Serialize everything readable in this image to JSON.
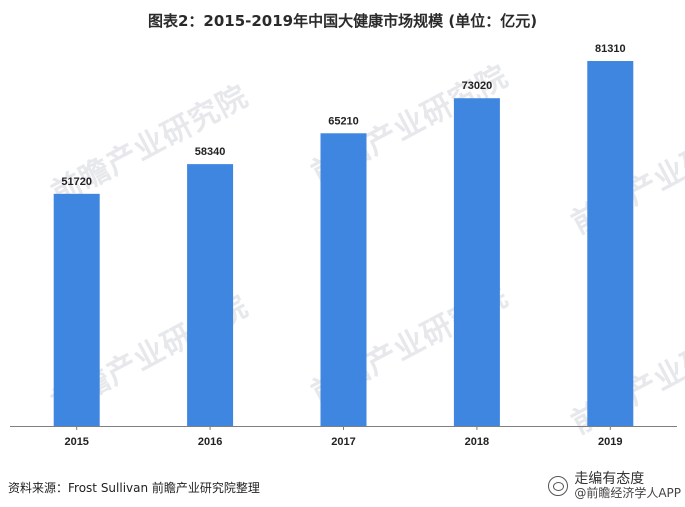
{
  "title": "图表2：2015-2019年中国大健康市场规模 (单位：亿元)",
  "watermark_text": "前瞻产业研究院",
  "footer": {
    "source": "资料来源：Frost Sullivan  前瞻产业研究院整理",
    "brand_line1": "走编有态度",
    "brand_line2": "@前瞻经济学人APP"
  },
  "colors": {
    "bar": "#3f86e0",
    "axis": "#7f7f7f"
  },
  "chart_data": {
    "type": "bar",
    "categories": [
      "2015",
      "2016",
      "2017",
      "2018",
      "2019"
    ],
    "values": [
      51720,
      58340,
      65210,
      73020,
      81310
    ],
    "title": "图表2：2015-2019年中国大健康市场规模 (单位：亿元)",
    "xlabel": "",
    "ylabel": "",
    "ylim": [
      0,
      90000
    ],
    "grid": false,
    "legend": "none"
  }
}
